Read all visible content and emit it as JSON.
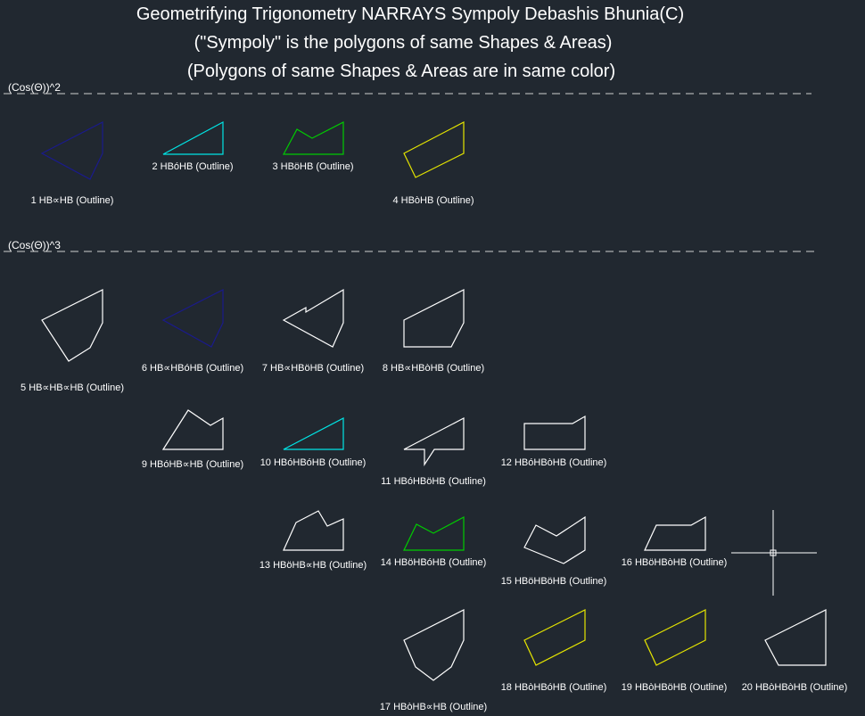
{
  "title": {
    "line1": "Geometrifying Trigonometry NARRAYS Sympoly Debashis Bhunia(C)",
    "line2": "(\"Sympoly\" is the polygons of same Shapes & Areas)",
    "line3": "(Polygons of same Shapes & Areas are in same color)"
  },
  "sections": [
    {
      "label": "(Cos(Θ))^2"
    },
    {
      "label": "(Cos(Θ))^3"
    }
  ],
  "colors": {
    "background": "#212830",
    "white": "#ffffff",
    "blue": "#1a1a8c",
    "cyan": "#00e5e5",
    "green": "#00cc00",
    "yellow": "#e5e500",
    "dash": "#cfcfcf"
  },
  "shapes": [
    {
      "label": "1 HB∝HB (Outline)",
      "color": "blue"
    },
    {
      "label": "2 HBóHB (Outline)",
      "color": "cyan"
    },
    {
      "label": "3 HBöHB (Outline)",
      "color": "green"
    },
    {
      "label": "4 HBòHB (Outline)",
      "color": "yellow"
    },
    {
      "label": "5 HB∝HB∝HB (Outline)",
      "color": "white"
    },
    {
      "label": "6 HB∝HBóHB (Outline)",
      "color": "blue"
    },
    {
      "label": "7 HB∝HBöHB (Outline)",
      "color": "white"
    },
    {
      "label": "8 HB∝HBòHB (Outline)",
      "color": "white"
    },
    {
      "label": "9 HBóHB∝HB (Outline)",
      "color": "white"
    },
    {
      "label": "10 HBóHBóHB (Outline)",
      "color": "cyan"
    },
    {
      "label": "11 HBóHBöHB (Outline)",
      "color": "white"
    },
    {
      "label": "12 HBóHBòHB (Outline)",
      "color": "white"
    },
    {
      "label": "13 HBöHB∝HB (Outline)",
      "color": "white"
    },
    {
      "label": "14 HBöHBóHB (Outline)",
      "color": "green"
    },
    {
      "label": "15 HBöHBöHB (Outline)",
      "color": "white"
    },
    {
      "label": "16 HBöHBòHB (Outline)",
      "color": "white"
    },
    {
      "label": "17 HBòHB∝HB (Outline)",
      "color": "white"
    },
    {
      "label": "18 HBòHBóHB (Outline)",
      "color": "yellow"
    },
    {
      "label": "19 HBòHBöHB (Outline)",
      "color": "yellow"
    },
    {
      "label": "20 HBòHBòHB (Outline)",
      "color": "white"
    }
  ],
  "cursor": {
    "icon": "crosshair-cursor-icon"
  }
}
